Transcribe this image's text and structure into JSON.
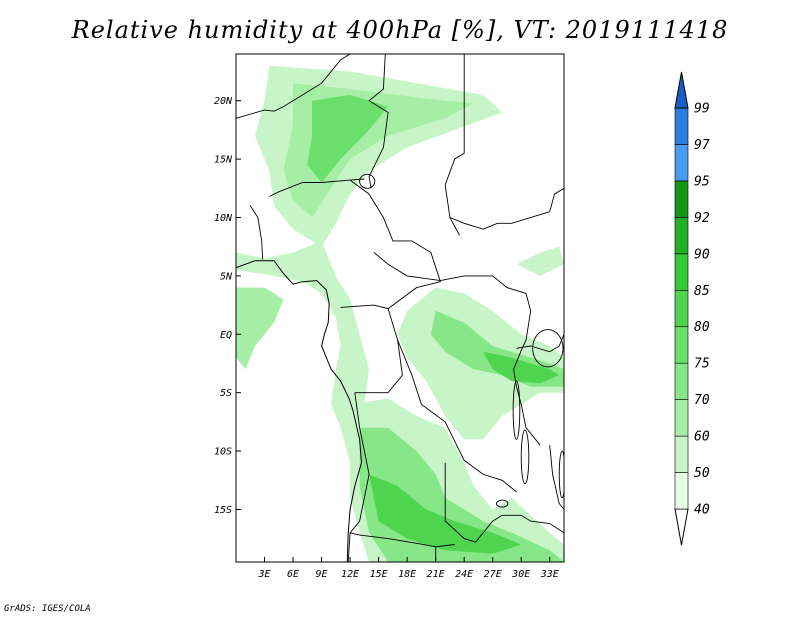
{
  "title": "Relative humidity at 400hPa [%], VT: 2019111418",
  "credit": "GrADS: IGES/COLA",
  "map": {
    "lon_range": [
      0,
      34.5
    ],
    "lat_range": [
      -19.5,
      24
    ],
    "lon_ticks": [
      {
        "value": 3,
        "label": "3E"
      },
      {
        "value": 6,
        "label": "6E"
      },
      {
        "value": 9,
        "label": "9E"
      },
      {
        "value": 12,
        "label": "12E"
      },
      {
        "value": 15,
        "label": "15E"
      },
      {
        "value": 18,
        "label": "18E"
      },
      {
        "value": 21,
        "label": "21E"
      },
      {
        "value": 24,
        "label": "24E"
      },
      {
        "value": 27,
        "label": "27E"
      },
      {
        "value": 30,
        "label": "30E"
      },
      {
        "value": 33,
        "label": "33E"
      }
    ],
    "lat_ticks": [
      {
        "value": 20,
        "label": "20N"
      },
      {
        "value": 15,
        "label": "15N"
      },
      {
        "value": 10,
        "label": "10N"
      },
      {
        "value": 5,
        "label": "5N"
      },
      {
        "value": 0,
        "label": "EQ"
      },
      {
        "value": -5,
        "label": "5S"
      },
      {
        "value": -10,
        "label": "10S"
      },
      {
        "value": -15,
        "label": "15S"
      }
    ]
  },
  "colorbar": {
    "levels": [
      "40",
      "50",
      "60",
      "70",
      "75",
      "80",
      "85",
      "90",
      "92",
      "95",
      "97",
      "99"
    ],
    "colors": [
      "#e8fce8",
      "#c8f5c8",
      "#a6eea6",
      "#87e687",
      "#6bde6b",
      "#4fd44f",
      "#38c838",
      "#24b024",
      "#149614",
      "#4a9cf0",
      "#2a7ee0",
      "#1a5fc8"
    ]
  },
  "humidity_regions": [
    {
      "level": 1,
      "poly": [
        [
          3.5,
          23
        ],
        [
          12,
          22.5
        ],
        [
          19,
          21.5
        ],
        [
          26,
          20.5
        ],
        [
          28,
          19
        ],
        [
          23,
          17.5
        ],
        [
          18,
          16
        ],
        [
          14,
          14
        ],
        [
          12,
          12
        ],
        [
          10.5,
          9.5
        ],
        [
          9,
          7.5
        ],
        [
          6,
          9
        ],
        [
          4,
          11
        ],
        [
          3.5,
          14
        ],
        [
          2,
          17
        ],
        [
          3,
          20
        ]
      ]
    },
    {
      "level": 2,
      "poly": [
        [
          6,
          21.5
        ],
        [
          12,
          21
        ],
        [
          17,
          20.5
        ],
        [
          22,
          20
        ],
        [
          25,
          19.8
        ],
        [
          22,
          18.5
        ],
        [
          16,
          17
        ],
        [
          12,
          15
        ],
        [
          10,
          12.5
        ],
        [
          8,
          10
        ],
        [
          6,
          11.5
        ],
        [
          5,
          14
        ],
        [
          6,
          18
        ]
      ]
    },
    {
      "level": 4,
      "poly": [
        [
          8,
          20
        ],
        [
          12,
          20.5
        ],
        [
          16,
          19.5
        ],
        [
          14,
          17.5
        ],
        [
          11,
          15
        ],
        [
          9,
          13
        ],
        [
          7.5,
          14.5
        ],
        [
          8,
          17
        ]
      ]
    },
    {
      "level": 1,
      "poly": [
        [
          0,
          5.5
        ],
        [
          4,
          5
        ],
        [
          7,
          4.5
        ],
        [
          9,
          3.5
        ],
        [
          10.5,
          1.5
        ],
        [
          11,
          -1
        ],
        [
          10.5,
          -3
        ],
        [
          10,
          -6
        ],
        [
          11,
          -8
        ],
        [
          12,
          -11
        ],
        [
          13,
          -9
        ],
        [
          13.5,
          -6
        ],
        [
          14,
          -3
        ],
        [
          13,
          0
        ],
        [
          12,
          3
        ],
        [
          10.5,
          5
        ],
        [
          9,
          8
        ],
        [
          6,
          7
        ],
        [
          3,
          6.5
        ],
        [
          0,
          7
        ]
      ]
    },
    {
      "level": 2,
      "poly": [
        [
          0,
          4
        ],
        [
          3,
          4
        ],
        [
          5,
          3
        ],
        [
          4,
          1
        ],
        [
          2,
          -1
        ],
        [
          1,
          -3
        ],
        [
          0,
          -2
        ]
      ]
    },
    {
      "level": 1,
      "poly": [
        [
          12,
          -6
        ],
        [
          16,
          -5.5
        ],
        [
          19,
          -7
        ],
        [
          22,
          -8
        ],
        [
          24,
          -11
        ],
        [
          25,
          -13
        ],
        [
          27,
          -15
        ],
        [
          29,
          -14
        ],
        [
          31,
          -15.5
        ],
        [
          33,
          -17
        ],
        [
          34.5,
          -18
        ],
        [
          34.5,
          -19.5
        ],
        [
          14,
          -19.5
        ],
        [
          13,
          -17
        ],
        [
          12,
          -14
        ],
        [
          12,
          -10
        ]
      ]
    },
    {
      "level": 3,
      "poly": [
        [
          13,
          -8
        ],
        [
          16,
          -8
        ],
        [
          19,
          -10
        ],
        [
          21,
          -12
        ],
        [
          22,
          -14
        ],
        [
          24,
          -15
        ],
        [
          26,
          -16
        ],
        [
          29,
          -17
        ],
        [
          33,
          -18.5
        ],
        [
          34.5,
          -19.5
        ],
        [
          16,
          -19.5
        ],
        [
          14,
          -17
        ],
        [
          13,
          -13
        ]
      ]
    },
    {
      "level": 5,
      "poly": [
        [
          14,
          -12
        ],
        [
          17,
          -13
        ],
        [
          20,
          -15
        ],
        [
          23,
          -16
        ],
        [
          27,
          -17
        ],
        [
          30,
          -18
        ],
        [
          27,
          -18.8
        ],
        [
          22,
          -18.5
        ],
        [
          18,
          -17.5
        ],
        [
          15,
          -16
        ]
      ]
    },
    {
      "level": 1,
      "poly": [
        [
          18,
          2
        ],
        [
          21,
          4
        ],
        [
          24,
          3.5
        ],
        [
          27,
          2
        ],
        [
          30,
          0
        ],
        [
          33,
          -1
        ],
        [
          34.5,
          -2
        ],
        [
          34.5,
          -5
        ],
        [
          32,
          -5
        ],
        [
          30,
          -6
        ],
        [
          28,
          -7
        ],
        [
          26,
          -9
        ],
        [
          24,
          -9
        ],
        [
          22,
          -7
        ],
        [
          20,
          -4
        ],
        [
          18,
          -2
        ],
        [
          17,
          0
        ]
      ]
    },
    {
      "level": 3,
      "poly": [
        [
          21,
          2
        ],
        [
          24,
          1
        ],
        [
          27,
          -1
        ],
        [
          29,
          -1.5
        ],
        [
          31,
          -2
        ],
        [
          33,
          -2.5
        ],
        [
          34.5,
          -3
        ],
        [
          34.5,
          -4.5
        ],
        [
          31,
          -4.5
        ],
        [
          28,
          -3.5
        ],
        [
          25,
          -3
        ],
        [
          22,
          -1.5
        ],
        [
          20.5,
          0
        ]
      ]
    },
    {
      "level": 5,
      "poly": [
        [
          26,
          -1.5
        ],
        [
          29,
          -2
        ],
        [
          31,
          -2.5
        ],
        [
          33,
          -3
        ],
        [
          34,
          -3.5
        ],
        [
          32,
          -4.2
        ],
        [
          29,
          -4
        ],
        [
          27,
          -3
        ]
      ]
    },
    {
      "level": 1,
      "poly": [
        [
          29.5,
          6
        ],
        [
          32,
          7
        ],
        [
          34,
          7.5
        ],
        [
          34.5,
          6
        ],
        [
          32,
          5
        ]
      ]
    }
  ],
  "borders": [
    [
      [
        0,
        18.5
      ],
      [
        3,
        19.2
      ],
      [
        4,
        19.1
      ],
      [
        5,
        19.5
      ],
      [
        7,
        20.5
      ],
      [
        9,
        21.5
      ],
      [
        11,
        23.5
      ],
      [
        12,
        24
      ]
    ],
    [
      [
        15.7,
        24
      ],
      [
        15.5,
        21
      ],
      [
        14,
        20
      ],
      [
        16,
        19
      ],
      [
        15.5,
        16
      ],
      [
        14,
        13.5
      ],
      [
        14.2,
        12.5
      ]
    ],
    [
      [
        1.5,
        11
      ],
      [
        2.3,
        10
      ],
      [
        2.7,
        8
      ],
      [
        2.8,
        6.4
      ]
    ],
    [
      [
        3.5,
        11.8
      ],
      [
        4.5,
        12.2
      ],
      [
        7,
        13
      ],
      [
        9,
        13
      ],
      [
        12,
        13.2
      ],
      [
        13.5,
        13.3
      ]
    ],
    [
      [
        12,
        13.2
      ],
      [
        14,
        12
      ],
      [
        15.5,
        10
      ],
      [
        16.5,
        8
      ],
      [
        18.5,
        8
      ],
      [
        20.5,
        7
      ],
      [
        21.5,
        4.5
      ],
      [
        19,
        4
      ],
      [
        16,
        2.2
      ],
      [
        14.5,
        2.5
      ],
      [
        11,
        2.3
      ]
    ],
    [
      [
        14.5,
        7
      ],
      [
        16,
        6
      ],
      [
        18,
        5
      ],
      [
        21.5,
        4.6
      ],
      [
        24,
        5
      ],
      [
        27,
        5
      ],
      [
        28.5,
        4
      ],
      [
        30.5,
        3.5
      ]
    ],
    [
      [
        24,
        24
      ],
      [
        24,
        19.5
      ],
      [
        24,
        15.5
      ],
      [
        23,
        15
      ],
      [
        22,
        12.8
      ],
      [
        22.5,
        10
      ],
      [
        23.5,
        8.5
      ]
    ],
    [
      [
        22.5,
        10
      ],
      [
        24,
        9.5
      ],
      [
        26,
        9
      ],
      [
        27.5,
        9.5
      ],
      [
        29,
        9.5
      ],
      [
        33,
        10.5
      ]
    ],
    [
      [
        33,
        10.5
      ],
      [
        33.5,
        12
      ],
      [
        34.5,
        12.5
      ]
    ],
    [
      [
        24,
        24
      ],
      [
        34.5,
        24
      ]
    ],
    [
      [
        16,
        2.2
      ],
      [
        17,
        -0.5
      ],
      [
        17.5,
        -3.5
      ],
      [
        16,
        -5
      ],
      [
        12.5,
        -5
      ]
    ],
    [
      [
        17,
        -0.5
      ],
      [
        18.5,
        -3.5
      ],
      [
        19.5,
        -6
      ],
      [
        22,
        -7.5
      ],
      [
        24,
        -10.8
      ],
      [
        26,
        -12
      ],
      [
        28,
        -12.5
      ],
      [
        29.5,
        -13.5
      ]
    ],
    [
      [
        12.5,
        -5
      ],
      [
        13,
        -8
      ],
      [
        14,
        -12
      ],
      [
        13,
        -16
      ],
      [
        12,
        -17
      ],
      [
        13,
        -17.2
      ],
      [
        16,
        -17.5
      ],
      [
        19,
        -17.9
      ],
      [
        21,
        -18.2
      ],
      [
        23,
        -18
      ]
    ],
    [
      [
        22,
        -11
      ],
      [
        22,
        -13
      ],
      [
        22,
        -16
      ],
      [
        24,
        -17.5
      ],
      [
        25.2,
        -17.8
      ],
      [
        27,
        -16
      ],
      [
        28,
        -15.5
      ],
      [
        30,
        -15.5
      ],
      [
        31,
        -16
      ],
      [
        33,
        -16.2
      ],
      [
        34.5,
        -17
      ]
    ],
    [
      [
        30.5,
        3.5
      ],
      [
        31,
        2
      ],
      [
        30.5,
        -0.5
      ],
      [
        30,
        -1.4
      ],
      [
        29.2,
        -3
      ],
      [
        29.5,
        -4.5
      ],
      [
        30,
        -6
      ],
      [
        30.5,
        -8
      ],
      [
        32,
        -9.5
      ]
    ],
    [
      [
        29.5,
        -1.2
      ],
      [
        31,
        -1
      ],
      [
        33,
        -1.5
      ],
      [
        34,
        -1
      ],
      [
        34.5,
        0
      ]
    ],
    [
      [
        33,
        -9.5
      ],
      [
        33.3,
        -12
      ],
      [
        34,
        -14.5
      ],
      [
        34.5,
        -15
      ]
    ],
    [
      [
        12,
        -17
      ],
      [
        11.8,
        -19.5
      ]
    ],
    [
      [
        21,
        -18.2
      ],
      [
        21,
        -19.5
      ]
    ]
  ],
  "coastline": [
    [
      0,
      5.7
    ],
    [
      2,
      6.3
    ],
    [
      4,
      6.3
    ],
    [
      5,
      5.2
    ],
    [
      6,
      4.3
    ],
    [
      7,
      4.5
    ],
    [
      8.5,
      4.6
    ],
    [
      9.5,
      3.8
    ],
    [
      9.8,
      2.6
    ],
    [
      9.7,
      1
    ],
    [
      9.3,
      0
    ],
    [
      9,
      -1
    ],
    [
      10,
      -3
    ],
    [
      11,
      -4
    ],
    [
      11.9,
      -5.5
    ],
    [
      12.3,
      -6.5
    ],
    [
      13,
      -9
    ],
    [
      13.2,
      -11
    ],
    [
      12.5,
      -13
    ],
    [
      12,
      -15
    ],
    [
      11.8,
      -17
    ],
    [
      11.7,
      -19.5
    ]
  ],
  "lakes": [
    {
      "cx": 13.8,
      "cy": 13.1,
      "rx": 0.8,
      "ry": 0.6
    },
    {
      "cx": 32.8,
      "cy": -1.2,
      "rx": 1.6,
      "ry": 1.6
    },
    {
      "cx": 29.5,
      "cy": -6.5,
      "rx": 0.35,
      "ry": 2.5
    },
    {
      "cx": 30.4,
      "cy": -10.5,
      "rx": 0.4,
      "ry": 2.3
    },
    {
      "cx": 34.3,
      "cy": -12.0,
      "rx": 0.3,
      "ry": 2.0
    },
    {
      "cx": 28,
      "cy": -14.5,
      "rx": 0.6,
      "ry": 0.3
    }
  ]
}
